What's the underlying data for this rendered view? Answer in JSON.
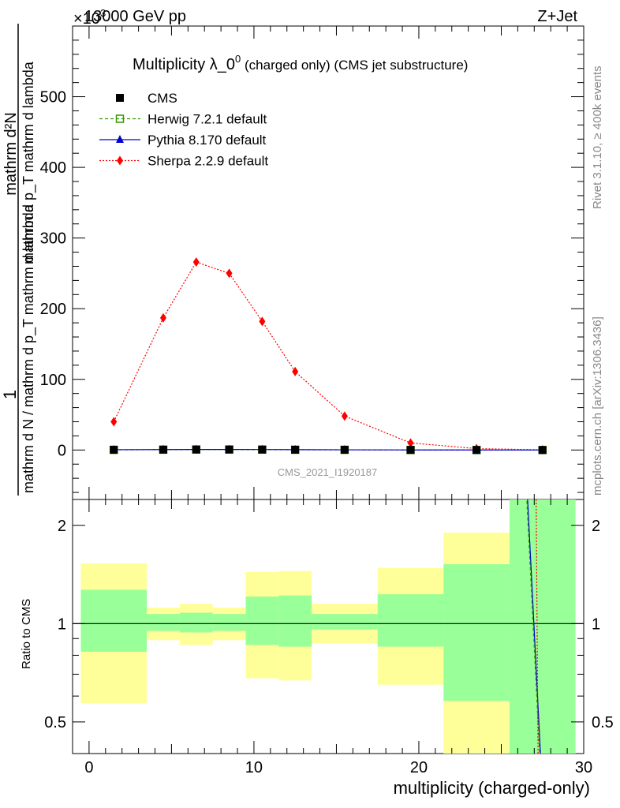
{
  "header": {
    "energy_label": "13000 GeV pp",
    "process_label": "Z+Jet",
    "exponent_label": "×10",
    "exponent_power": "3"
  },
  "side_labels": {
    "rivet": "Rivet 3.1.10, ≥ 400k events",
    "mcplots": "mcplots.cern.ch [arXiv:1306.3436]"
  },
  "chart_data": {
    "type": "line",
    "title": "Multiplicity λ_0",
    "title_sup": "0",
    "title_suffix": "(charged only) (CMS jet substructure)",
    "watermark": "CMS_2021_I1920187",
    "ylabel_top": "1",
    "ylabel_bottom": "mathrm d N / mathrm d p_T mathrm d lambda",
    "ylabel_numerator": "mathrm d²N",
    "ylabel_denominator": "mathrm d p_T mathrm d lambda",
    "xlabel": "multiplicity (charged-only)",
    "ratio_ylabel": "Ratio to CMS",
    "xlim": [
      -1,
      30
    ],
    "ylim": [
      -70,
      600
    ],
    "yticks": [
      0,
      100,
      200,
      300,
      400,
      500
    ],
    "xticks": [
      0,
      10,
      20,
      30
    ],
    "ratio_ylim": [
      0.4,
      2.4
    ],
    "ratio_yticks": [
      0.5,
      1,
      2
    ],
    "x": [
      1.5,
      4.5,
      6.5,
      8.5,
      10.5,
      12.5,
      15.5,
      19.5,
      23.5,
      27.5
    ],
    "bin_edges": [
      -0.5,
      3.5,
      5.5,
      7.5,
      9.5,
      11.5,
      13.5,
      17.5,
      21.5,
      25.5,
      29.5
    ],
    "series": [
      {
        "name": "CMS",
        "color": "#000000",
        "marker": "square",
        "line": "none",
        "values": [
          0.3,
          0.5,
          0.7,
          0.7,
          0.6,
          0.4,
          0.3,
          0.1,
          0.02,
          0.01
        ]
      },
      {
        "name": "Herwig 7.2.1 default",
        "color": "#339900",
        "marker": "open-square",
        "line": "dashed",
        "values": [
          0.3,
          0.5,
          0.7,
          0.7,
          0.6,
          0.4,
          0.3,
          0.1,
          0.02,
          0.01
        ]
      },
      {
        "name": "Pythia 8.170 default",
        "color": "#0000cc",
        "marker": "triangle",
        "line": "solid",
        "values": [
          0.4,
          0.6,
          0.8,
          0.8,
          0.7,
          0.5,
          0.3,
          0.1,
          0.03,
          0.01
        ]
      },
      {
        "name": "Sherpa 2.2.9 default",
        "color": "#ff0000",
        "marker": "diamond",
        "line": "dotted",
        "values": [
          40,
          187,
          266,
          250,
          182,
          111,
          48,
          10,
          2,
          0.2
        ]
      }
    ],
    "ratio_bands": {
      "stat": [
        [
          0.82,
          1.27
        ],
        [
          0.95,
          1.07
        ],
        [
          0.94,
          1.08
        ],
        [
          0.95,
          1.07
        ],
        [
          0.86,
          1.21
        ],
        [
          0.85,
          1.22
        ],
        [
          0.96,
          1.07
        ],
        [
          0.85,
          1.23
        ],
        [
          0.58,
          1.52
        ],
        [
          0.3,
          3.0
        ]
      ],
      "total": [
        [
          0.57,
          1.53
        ],
        [
          0.89,
          1.12
        ],
        [
          0.86,
          1.15
        ],
        [
          0.89,
          1.12
        ],
        [
          0.68,
          1.44
        ],
        [
          0.67,
          1.45
        ],
        [
          0.87,
          1.15
        ],
        [
          0.65,
          1.48
        ],
        [
          0.3,
          1.9
        ],
        [
          0.3,
          3.0
        ]
      ]
    },
    "ratio_lines": {
      "pythia": [
        [
          26.5,
          3.0
        ],
        [
          27.5,
          0.3
        ]
      ],
      "herwig": [
        [
          26.45,
          3.0
        ],
        [
          27.45,
          0.3
        ]
      ],
      "sherpa": [
        [
          27.1,
          3.0
        ],
        [
          27.25,
          0.3
        ]
      ]
    }
  }
}
